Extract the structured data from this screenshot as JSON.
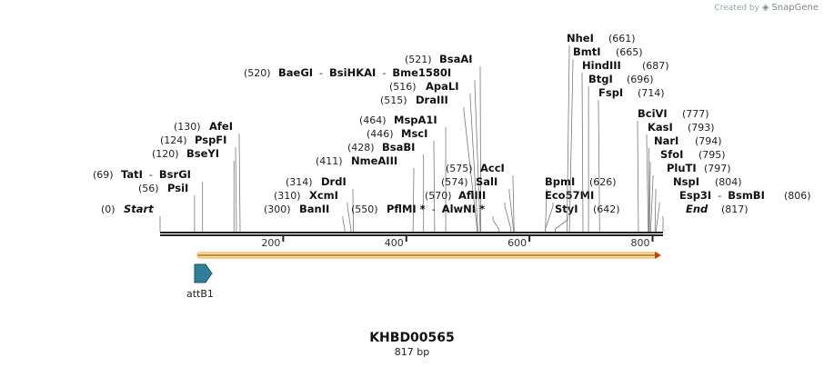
{
  "credit": {
    "prefix": "Created by",
    "brand": "SnapGene",
    "icon": "snapgene-logo-icon"
  },
  "plasmid": {
    "name": "KHBD00565",
    "length_label": "817 bp",
    "length": 817
  },
  "ruler": {
    "ticks": [
      {
        "value": 200,
        "label": "200"
      },
      {
        "value": 400,
        "label": "400"
      },
      {
        "value": 600,
        "label": "600"
      },
      {
        "value": 800,
        "label": "800"
      }
    ]
  },
  "features": [
    {
      "name": "attB1",
      "start": 62,
      "end": 86,
      "color": "#2f7f9a"
    },
    {
      "name": "",
      "start": 62,
      "end": 817,
      "color": "#f0a626",
      "direction": "forward"
    }
  ],
  "sites": [
    {
      "name": "Start",
      "pos": "(0)",
      "bp": 0,
      "italic": true
    },
    {
      "name": "PsiI",
      "pos": "(56)",
      "bp": 56
    },
    {
      "name": "TatI",
      "name2": "BsrGI",
      "pos": "(69)",
      "bp": 69
    },
    {
      "name": "BseYI",
      "pos": "(120)",
      "bp": 120
    },
    {
      "name": "PspFI",
      "pos": "(124)",
      "bp": 124
    },
    {
      "name": "AfeI",
      "pos": "(130)",
      "bp": 130
    },
    {
      "name": "BanII",
      "pos": "(300)",
      "bp": 300
    },
    {
      "name": "XcmI",
      "pos": "(310)",
      "bp": 310
    },
    {
      "name": "DrdI",
      "pos": "(314)",
      "bp": 314
    },
    {
      "name": "NmeAIII",
      "pos": "(411)",
      "bp": 411
    },
    {
      "name": "BsaBI",
      "pos": "(428)",
      "bp": 428
    },
    {
      "name": "MscI",
      "pos": "(446)",
      "bp": 446
    },
    {
      "name": "MspA1I",
      "pos": "(464)",
      "bp": 464
    },
    {
      "name": "DraIII",
      "pos": "(515)",
      "bp": 515
    },
    {
      "name": "ApaLI",
      "pos": "(516)",
      "bp": 516
    },
    {
      "name": "BaeGI",
      "name2": "BsiHKAI",
      "name3": "Bme1580I",
      "pos": "(520)",
      "bp": 520
    },
    {
      "name": "BsaAI",
      "pos": "(521)",
      "bp": 521
    },
    {
      "name": "PflMI *",
      "name2": "AlwNI *",
      "pos": "(550)",
      "bp": 550
    },
    {
      "name": "AflIII",
      "pos": "(570)",
      "bp": 570
    },
    {
      "name": "SalI",
      "pos": "(574)",
      "bp": 574
    },
    {
      "name": "AccI",
      "pos": "(575)",
      "bp": 575
    },
    {
      "name": "BpmI",
      "pos": "(626)",
      "bp": 626
    },
    {
      "name": "Eco57MI",
      "pos": "(626)",
      "bp": 626
    },
    {
      "name": "StyI",
      "pos": "(642)",
      "bp": 642
    },
    {
      "name": "NheI",
      "pos": "(661)",
      "bp": 661
    },
    {
      "name": "BmtI",
      "pos": "(665)",
      "bp": 665
    },
    {
      "name": "HindIII",
      "pos": "(687)",
      "bp": 687
    },
    {
      "name": "BtgI",
      "pos": "(696)",
      "bp": 696
    },
    {
      "name": "FspI",
      "pos": "(714)",
      "bp": 714
    },
    {
      "name": "BciVI",
      "pos": "(777)",
      "bp": 777
    },
    {
      "name": "KasI",
      "pos": "(793)",
      "bp": 793
    },
    {
      "name": "NarI",
      "pos": "(794)",
      "bp": 794
    },
    {
      "name": "SfoI",
      "pos": "(795)",
      "bp": 795
    },
    {
      "name": "PluTI",
      "pos": "(797)",
      "bp": 797
    },
    {
      "name": "NspI",
      "pos": "(804)",
      "bp": 804
    },
    {
      "name": "Esp3I",
      "name2": "BsmBI",
      "pos": "(806)",
      "bp": 806
    },
    {
      "name": "End",
      "pos": "(817)",
      "bp": 817,
      "italic": true
    }
  ]
}
